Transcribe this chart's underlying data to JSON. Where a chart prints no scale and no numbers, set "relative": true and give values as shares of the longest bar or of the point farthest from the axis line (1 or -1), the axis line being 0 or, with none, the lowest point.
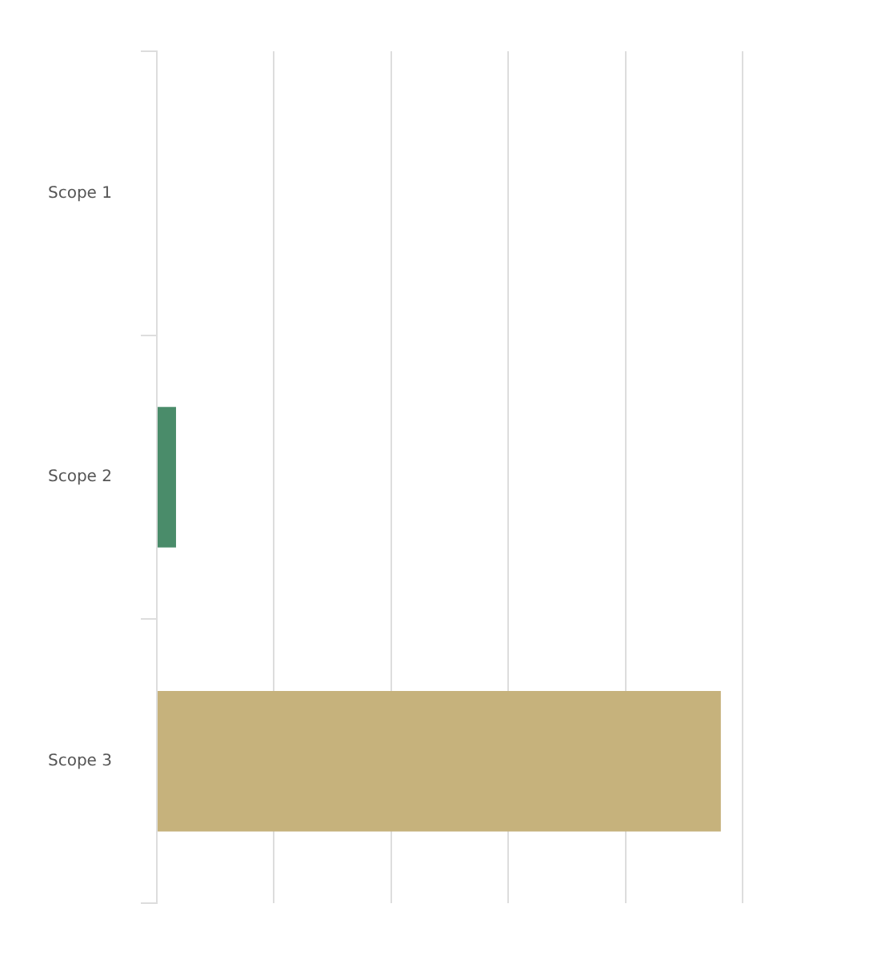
{
  "chart_data": {
    "type": "bar",
    "orientation": "horizontal",
    "relative": true,
    "categories": [
      "Scope 1",
      "Scope 2",
      "Scope 3"
    ],
    "values": [
      0,
      0.034,
      1
    ],
    "colors": [
      "#4a8c6a",
      "#4a8c6a",
      "#c6b27c"
    ],
    "grid": "x",
    "legend": false
  }
}
